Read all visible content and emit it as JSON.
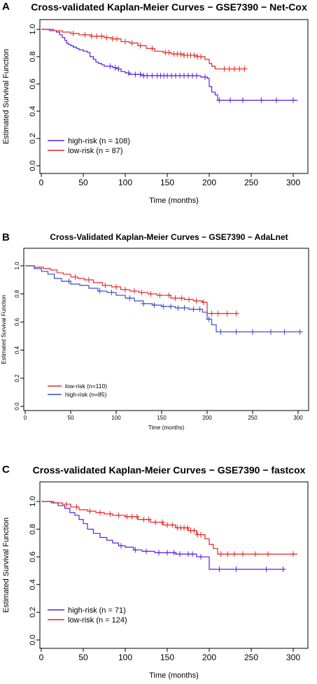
{
  "chart_data": [
    {
      "panel_label": "A",
      "type": "line",
      "title": "Cross-validated Kaplan-Meier Curves − GSE7390 − Net-Cox",
      "xlabel": "Time (months)",
      "ylabel": "Estimated Survival Function",
      "xlim": [
        0,
        300
      ],
      "ylim": [
        0,
        1
      ],
      "xticks": [
        0,
        50,
        100,
        150,
        200,
        250,
        300
      ],
      "yticks": [
        0.0,
        0.2,
        0.4,
        0.6,
        0.8,
        1.0
      ],
      "legend_position": "bottom-left",
      "series": [
        {
          "name": "high-risk (n = 108)",
          "color": "#5a1fe0",
          "x": [
            0,
            10,
            18,
            22,
            25,
            28,
            30,
            32,
            35,
            38,
            42,
            45,
            50,
            55,
            58,
            62,
            65,
            68,
            72,
            75,
            80,
            85,
            90,
            95,
            100,
            105,
            110,
            120,
            135,
            160,
            190,
            198,
            200,
            203,
            207,
            210,
            250,
            305
          ],
          "y": [
            1.0,
            0.99,
            0.98,
            0.96,
            0.94,
            0.92,
            0.9,
            0.89,
            0.88,
            0.87,
            0.86,
            0.85,
            0.84,
            0.83,
            0.8,
            0.78,
            0.76,
            0.75,
            0.74,
            0.73,
            0.73,
            0.72,
            0.71,
            0.69,
            0.68,
            0.67,
            0.67,
            0.66,
            0.66,
            0.66,
            0.65,
            0.64,
            0.58,
            0.54,
            0.52,
            0.48,
            0.48,
            0.48
          ],
          "censor_x": [
            82,
            88,
            92,
            104,
            112,
            118,
            122,
            126,
            132,
            138,
            142,
            146,
            150,
            155,
            160,
            165,
            170,
            175,
            180,
            185,
            195,
            212,
            225,
            240,
            262,
            280,
            300
          ]
        },
        {
          "name": "low-risk (n = 87)",
          "color": "#e8221e",
          "x": [
            0,
            15,
            25,
            35,
            45,
            60,
            75,
            85,
            95,
            105,
            115,
            125,
            135,
            145,
            155,
            170,
            185,
            195,
            200,
            203,
            207,
            243
          ],
          "y": [
            1.0,
            0.99,
            0.98,
            0.97,
            0.96,
            0.95,
            0.94,
            0.93,
            0.91,
            0.9,
            0.88,
            0.86,
            0.84,
            0.83,
            0.82,
            0.81,
            0.8,
            0.78,
            0.75,
            0.73,
            0.71,
            0.71
          ],
          "censor_x": [
            38,
            52,
            60,
            66,
            72,
            78,
            85,
            90,
            100,
            108,
            118,
            132,
            148,
            152,
            158,
            162,
            166,
            170,
            174,
            178,
            182,
            186,
            190,
            218,
            224,
            230,
            236,
            242
          ]
        }
      ]
    },
    {
      "panel_label": "B",
      "type": "line",
      "title": "Cross-Validated Kaplan-Meier Curves − GSE7390 − AdaLnet",
      "xlabel": "Time (months)",
      "ylabel": "Estimated Survival Function",
      "xlim": [
        0,
        300
      ],
      "ylim": [
        0,
        1
      ],
      "xticks": [
        0,
        50,
        100,
        150,
        200,
        250,
        300
      ],
      "yticks": [
        0.0,
        0.2,
        0.4,
        0.6,
        0.8,
        1.0
      ],
      "legend_position": "bottom-left",
      "series": [
        {
          "name": "low-risk (n=110)",
          "color": "#e82a2a",
          "x": [
            0,
            10,
            20,
            28,
            35,
            42,
            50,
            58,
            65,
            75,
            85,
            95,
            105,
            115,
            125,
            135,
            145,
            160,
            175,
            185,
            195,
            200,
            235
          ],
          "y": [
            1.0,
            0.99,
            0.98,
            0.97,
            0.95,
            0.94,
            0.92,
            0.91,
            0.9,
            0.88,
            0.86,
            0.85,
            0.83,
            0.82,
            0.81,
            0.8,
            0.79,
            0.77,
            0.76,
            0.75,
            0.74,
            0.66,
            0.66
          ],
          "censor_x": [
            55,
            70,
            88,
            100,
            110,
            120,
            128,
            138,
            148,
            158,
            165,
            172,
            180,
            188,
            196,
            205,
            212,
            222,
            232
          ]
        },
        {
          "name": "high-risk (n=85)",
          "color": "#3a4ad8",
          "x": [
            0,
            10,
            18,
            25,
            32,
            40,
            50,
            60,
            70,
            80,
            90,
            100,
            110,
            120,
            130,
            140,
            150,
            165,
            180,
            195,
            200,
            205,
            210,
            305
          ],
          "y": [
            1.0,
            0.98,
            0.96,
            0.94,
            0.91,
            0.89,
            0.87,
            0.86,
            0.84,
            0.82,
            0.81,
            0.79,
            0.77,
            0.75,
            0.73,
            0.72,
            0.71,
            0.7,
            0.69,
            0.67,
            0.62,
            0.58,
            0.53,
            0.53
          ],
          "censor_x": [
            48,
            82,
            95,
            115,
            130,
            142,
            152,
            160,
            168,
            175,
            185,
            192,
            202,
            215,
            232,
            250,
            270,
            285,
            302
          ]
        }
      ]
    },
    {
      "panel_label": "C",
      "type": "line",
      "title": "Cross-validated Kaplan-Meier Curves − GSE7390 − fastcox",
      "xlabel": "Time (months)",
      "ylabel": "Estimated Survival Function",
      "xlim": [
        0,
        300
      ],
      "ylim": [
        0,
        1
      ],
      "xticks": [
        0,
        50,
        100,
        150,
        200,
        250,
        300
      ],
      "yticks": [
        0.0,
        0.2,
        0.4,
        0.6,
        0.8,
        1.0
      ],
      "legend_position": "bottom-left",
      "series": [
        {
          "name": "high-risk (n = 71)",
          "color": "#5a1fe0",
          "x": [
            0,
            12,
            20,
            28,
            34,
            40,
            45,
            50,
            55,
            62,
            70,
            78,
            85,
            92,
            100,
            110,
            120,
            135,
            160,
            185,
            200,
            290
          ],
          "y": [
            1.0,
            0.99,
            0.97,
            0.95,
            0.92,
            0.9,
            0.87,
            0.84,
            0.8,
            0.77,
            0.74,
            0.72,
            0.7,
            0.68,
            0.67,
            0.65,
            0.64,
            0.63,
            0.62,
            0.6,
            0.51,
            0.51
          ],
          "censor_x": [
            95,
            112,
            125,
            140,
            150,
            158,
            165,
            175,
            180,
            190,
            212,
            232,
            268,
            288
          ]
        },
        {
          "name": "low-risk (n = 124)",
          "color": "#e8221e",
          "x": [
            0,
            15,
            25,
            35,
            45,
            55,
            65,
            75,
            85,
            100,
            115,
            130,
            145,
            160,
            175,
            185,
            195,
            200,
            205,
            210,
            305
          ],
          "y": [
            1.0,
            0.99,
            0.98,
            0.96,
            0.94,
            0.93,
            0.92,
            0.91,
            0.9,
            0.89,
            0.87,
            0.85,
            0.83,
            0.81,
            0.79,
            0.76,
            0.73,
            0.69,
            0.66,
            0.62,
            0.62
          ],
          "censor_x": [
            30,
            42,
            58,
            70,
            82,
            92,
            102,
            108,
            114,
            122,
            128,
            136,
            144,
            150,
            156,
            162,
            166,
            170,
            174,
            178,
            182,
            186,
            190,
            214,
            222,
            230,
            240,
            255,
            270,
            300
          ]
        }
      ]
    }
  ]
}
